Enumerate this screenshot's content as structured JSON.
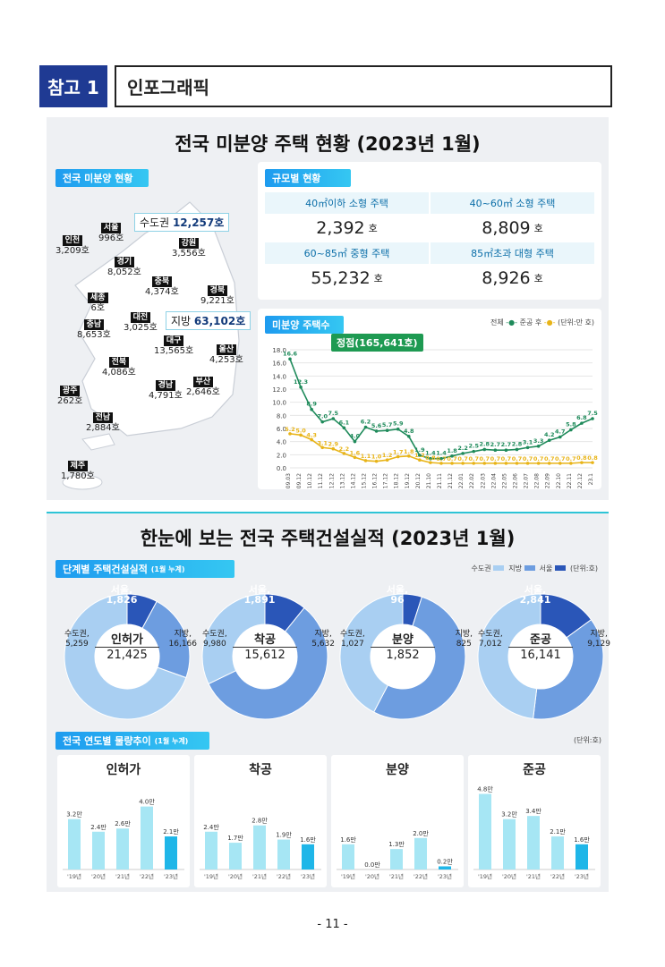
{
  "header": {
    "tag": "참고 1",
    "title": "인포그래픽"
  },
  "section1": {
    "title": "전국 미분양 주택 현황  (2023년 1월)",
    "map_pill": "전국 미분양 현황",
    "capital_box": {
      "label": "수도권",
      "value": "12,257호"
    },
    "local_box": {
      "label": "지방",
      "value": "63,102호"
    },
    "regions": [
      {
        "name": "서울",
        "value": "996호"
      },
      {
        "name": "인천",
        "value": "3,209호"
      },
      {
        "name": "강원",
        "value": "3,556호"
      },
      {
        "name": "경기",
        "value": "8,052호"
      },
      {
        "name": "충북",
        "value": "4,374호"
      },
      {
        "name": "경북",
        "value": "9,221호"
      },
      {
        "name": "세종",
        "value": "6호"
      },
      {
        "name": "대전",
        "value": "3,025호"
      },
      {
        "name": "충남",
        "value": "8,653호"
      },
      {
        "name": "대구",
        "value": "13,565호"
      },
      {
        "name": "울산",
        "value": "4,253호"
      },
      {
        "name": "전북",
        "value": "4,086호"
      },
      {
        "name": "경남",
        "value": "4,791호"
      },
      {
        "name": "부산",
        "value": "2,646호"
      },
      {
        "name": "광주",
        "value": "262호"
      },
      {
        "name": "전남",
        "value": "2,884호"
      },
      {
        "name": "제주",
        "value": "1,780호"
      }
    ],
    "size_pill": "규모별 현황",
    "sizes": [
      {
        "label": "40㎡이하 소형 주택",
        "value": "2,392",
        "unit": "호"
      },
      {
        "label": "40~60㎡ 소형 주택",
        "value": "8,809",
        "unit": "호"
      },
      {
        "label": "60~85㎡ 중형 주택",
        "value": "55,232",
        "unit": "호"
      },
      {
        "label": "85㎡초과 대형 주택",
        "value": "8,926",
        "unit": "호"
      }
    ],
    "trend_pill": "미분양 주택수",
    "legend": {
      "total": "전체",
      "after": "준공 후",
      "unit": "(단위:만 호)"
    },
    "peak_label": "정점(165,641호)"
  },
  "chart_data": [
    {
      "type": "line",
      "title": "미분양 주택수",
      "x": [
        "09.03",
        "09.12",
        "10.12",
        "11.12",
        "12.12",
        "13.12",
        "14.12",
        "15.12",
        "16.12",
        "17.12",
        "18.12",
        "19.12",
        "20.12",
        "21.10",
        "21.11",
        "21.12",
        "22.01",
        "22.02",
        "22.03",
        "22.04",
        "22.05",
        "22.06",
        "22.07",
        "22.08",
        "22.09",
        "22.10",
        "22.11",
        "22.12",
        "23.1"
      ],
      "series": [
        {
          "name": "전체",
          "values": [
            16.6,
            12.3,
            8.9,
            7.0,
            7.5,
            6.1,
            4.0,
            6.2,
            5.6,
            5.7,
            5.9,
            4.8,
            1.9,
            1.4,
            1.4,
            1.8,
            2.2,
            2.5,
            2.8,
            2.7,
            2.7,
            2.8,
            3.1,
            3.3,
            4.2,
            4.7,
            5.8,
            6.8,
            7.5
          ],
          "labels": [
            "16.6",
            "12.3",
            "8.9",
            "7.0",
            "7.5",
            "6.1",
            "4.0",
            "6.2",
            "5.6",
            "5.7",
            "5.9",
            "4.8",
            "1.9",
            "1.4",
            "1.4",
            "1.8",
            "2.2",
            "2.5",
            "2.8",
            "2.7",
            "2.7",
            "2.8",
            "3.1",
            "3.3",
            "4.2",
            "4.7",
            "5.8",
            "6.8",
            "7.5"
          ]
        },
        {
          "name": "준공 후",
          "values": [
            5.2,
            5.0,
            4.3,
            3.1,
            2.9,
            2.2,
            1.6,
            1.1,
            1.0,
            1.2,
            1.7,
            1.8,
            1.2,
            0.8,
            0.7,
            0.7,
            0.7,
            0.7,
            0.7,
            0.7,
            0.7,
            0.7,
            0.7,
            0.7,
            0.7,
            0.7,
            0.7,
            0.8,
            0.8
          ],
          "labels": [
            "5.2",
            "5.0",
            "4.3",
            "3.1",
            "2.9",
            "2.2",
            "1.6",
            "1.1",
            "1.0",
            "1.2",
            "1.7",
            "1.8",
            "1.2",
            "0.8",
            "0.7",
            "0.7",
            "0.7",
            "0.7",
            "0.7",
            "0.7",
            "0.7",
            "0.7",
            "0.7",
            "0.7",
            "0.7",
            "0.7",
            "0.7",
            "0.8",
            "0.8"
          ]
        }
      ],
      "yticks": [
        "0.0",
        "2.0",
        "4.0",
        "6.0",
        "8.0",
        "10.0",
        "12.0",
        "14.0",
        "16.0",
        "18.0"
      ],
      "ylim": [
        0,
        18
      ],
      "colors": {
        "total": "#1e8a5a",
        "after": "#e8b418"
      }
    },
    {
      "type": "pie",
      "title": "단계별 주택건설실적",
      "donuts": [
        {
          "center": "인허가",
          "total": "21,425",
          "slices": [
            {
              "name": "서울",
              "value": 1826,
              "label": "1,826"
            },
            {
              "name": "수도권",
              "value": 5259,
              "label": "5,259"
            },
            {
              "name": "지방",
              "value": 16166,
              "label": "16,166"
            }
          ]
        },
        {
          "center": "착공",
          "total": "15,612",
          "slices": [
            {
              "name": "서울",
              "value": 1891,
              "label": "1,891"
            },
            {
              "name": "수도권",
              "value": 9980,
              "label": "9,980"
            },
            {
              "name": "지방",
              "value": 5632,
              "label": "5,632"
            }
          ]
        },
        {
          "center": "분양",
          "total": "1,852",
          "slices": [
            {
              "name": "서울",
              "value": 96,
              "label": "96"
            },
            {
              "name": "수도권",
              "value": 1027,
              "label": "1,027"
            },
            {
              "name": "지방",
              "value": 825,
              "label": "825"
            }
          ]
        },
        {
          "center": "준공",
          "total": "16,141",
          "slices": [
            {
              "name": "서울",
              "value": 2841,
              "label": "2,841"
            },
            {
              "name": "수도권",
              "value": 7012,
              "label": "7,012"
            },
            {
              "name": "지방",
              "value": 9129,
              "label": "9,129"
            }
          ]
        }
      ]
    },
    {
      "type": "bar",
      "title": "전국 연도별 물량추이",
      "categories": [
        "'19년",
        "'20년",
        "'21년",
        "'22년",
        "'23년"
      ],
      "groups": [
        {
          "name": "인허가",
          "values": [
            3.2,
            2.4,
            2.6,
            4.0,
            2.1
          ],
          "labels": [
            "3.2만",
            "2.4만",
            "2.6만",
            "4.0만",
            "2.1만"
          ]
        },
        {
          "name": "착공",
          "values": [
            2.4,
            1.7,
            2.8,
            1.9,
            1.6
          ],
          "labels": [
            "2.4만",
            "1.7만",
            "2.8만",
            "1.9만",
            "1.6만"
          ]
        },
        {
          "name": "분양",
          "values": [
            1.6,
            0.0,
            1.3,
            2.0,
            0.2
          ],
          "labels": [
            "1.6만",
            "0.0만",
            "1.3만",
            "2.0만",
            "0.2만"
          ]
        },
        {
          "name": "준공",
          "values": [
            4.8,
            3.2,
            3.4,
            2.1,
            1.6
          ],
          "labels": [
            "4.8만",
            "3.2만",
            "3.4만",
            "2.1만",
            "1.6만"
          ]
        }
      ]
    }
  ],
  "section2": {
    "title": "한눈에 보는 전국 주택건설실적  (2023년 1월)",
    "pill": "단계별 주택건설실적",
    "pill_note": "(1월 누계)",
    "legend": [
      "수도권",
      "지방",
      "서울",
      "(단위:호)"
    ],
    "donut_prefix": {
      "seoul": "서울,",
      "capital": "수도권,",
      "local": "지방,"
    },
    "trend_pill": "전국 연도별 물량추이",
    "trend_note": "(1월 누계)",
    "trend_unit": "(단위:호)"
  },
  "page_number": "- 11 -"
}
